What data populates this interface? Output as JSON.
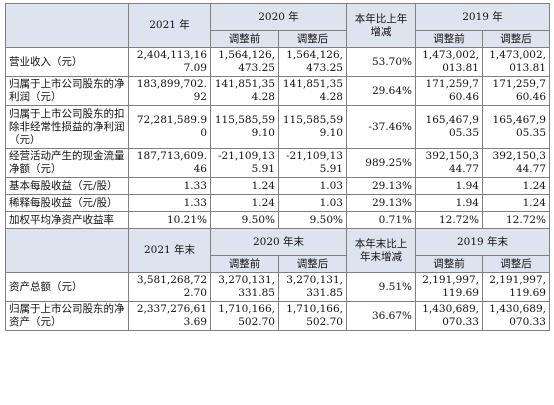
{
  "header1": {
    "year_2021": "2021 年",
    "year_2020": "2020 年",
    "change_line1": "本年比上年",
    "change_line2": "增减",
    "year_2019": "2019 年",
    "before": "调整前",
    "after": "调整后"
  },
  "rows1": [
    {
      "label": "营业收入（元）",
      "v2021": "2,404,113,167.09",
      "v2020a": "1,564,126,473.25",
      "v2020b": "1,564,126,473.25",
      "chg": "53.70%",
      "v2019a": "1,473,002,013.81",
      "v2019b": "1,473,002,013.81"
    },
    {
      "label": "归属于上市公司股东的净利润（元）",
      "v2021": "183,899,702.92",
      "v2020a": "141,851,354.28",
      "v2020b": "141,851,354.28",
      "chg": "29.64%",
      "v2019a": "171,259,760.46",
      "v2019b": "171,259,760.46"
    },
    {
      "label": "归属于上市公司股东的扣除非经常性损益的净利润（元）",
      "v2021": "72,281,589.90",
      "v2020a": "115,585,599.10",
      "v2020b": "115,585,599.10",
      "chg": "-37.46%",
      "v2019a": "165,467,905.35",
      "v2019b": "165,467,905.35"
    },
    {
      "label": "经营活动产生的现金流量净额（元）",
      "v2021": "187,713,609.46",
      "v2020a": "-21,109,135.91",
      "v2020b": "-21,109,135.91",
      "chg": "989.25%",
      "v2019a": "392,150,344.77",
      "v2019b": "392,150,344.77"
    },
    {
      "label": "基本每股收益（元/股）",
      "v2021": "1.33",
      "v2020a": "1.24",
      "v2020b": "1.03",
      "chg": "29.13%",
      "v2019a": "1.94",
      "v2019b": "1.24"
    },
    {
      "label": "稀释每股收益（元/股）",
      "v2021": "1.33",
      "v2020a": "1.24",
      "v2020b": "1.03",
      "chg": "29.13%",
      "v2019a": "1.94",
      "v2019b": "1.24"
    },
    {
      "label": "加权平均净资产收益率",
      "v2021": "10.21%",
      "v2020a": "9.50%",
      "v2020b": "9.50%",
      "chg": "0.71%",
      "v2019a": "12.72%",
      "v2019b": "12.72%"
    }
  ],
  "header2": {
    "year_2021": "2021 年末",
    "year_2020": "2020 年末",
    "change_line1": "本年末比上",
    "change_line2": "年末增减",
    "year_2019": "2019 年末",
    "before": "调整前",
    "after": "调整后"
  },
  "rows2": [
    {
      "label": "资产总额（元）",
      "v2021": "3,581,268,722.70",
      "v2020a": "3,270,131,331.85",
      "v2020b": "3,270,131,331.85",
      "chg": "9.51%",
      "v2019a": "2,191,997,119.69",
      "v2019b": "2,191,997,119.69"
    },
    {
      "label": "归属于上市公司股东的净资产（元）",
      "v2021": "2,337,276,613.69",
      "v2020a": "1,710,166,502.70",
      "v2020b": "1,710,166,502.70",
      "chg": "36.67%",
      "v2019a": "1,430,689,070.33",
      "v2019b": "1,430,689,070.33"
    }
  ]
}
